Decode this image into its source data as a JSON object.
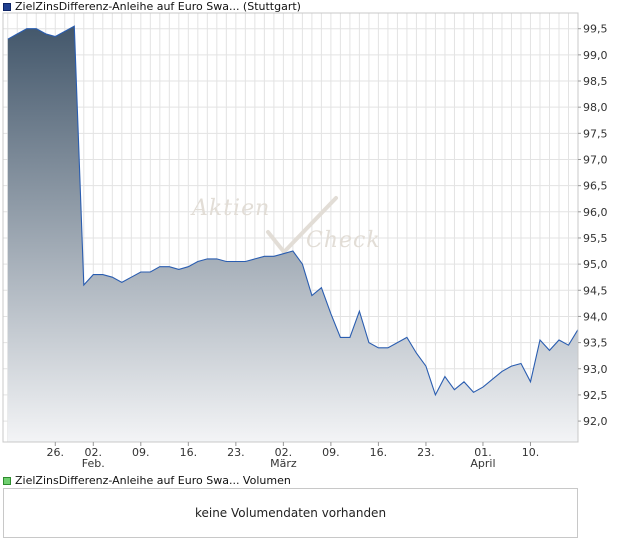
{
  "legend": {
    "price_label": "ZielZinsDifferenz-Anleihe auf Euro Swa... (Stuttgart)",
    "volume_label": "ZielZinsDifferenz-Anleihe auf Euro Swa... Volumen"
  },
  "volume_panel": {
    "message": "keine Volumendaten vorhanden"
  },
  "watermark": {
    "line1": "Aktien",
    "line2": "Check"
  },
  "chart_data": {
    "type": "area",
    "y_ticks": [
      "99,5",
      "99,0",
      "98,5",
      "98,0",
      "97,5",
      "97,0",
      "96,5",
      "96,0",
      "95,5",
      "95,0",
      "94,5",
      "94,0",
      "93,5",
      "93,0",
      "92,5",
      "92,0"
    ],
    "y_tick_values": [
      99.5,
      99.0,
      98.5,
      98.0,
      97.5,
      97.0,
      96.5,
      96.0,
      95.5,
      95.0,
      94.5,
      94.0,
      93.5,
      93.0,
      92.5,
      92.0
    ],
    "ylim": [
      91.6,
      99.8
    ],
    "x_ticks": [
      {
        "day": "26.",
        "month": "",
        "t": 16
      },
      {
        "day": "02.",
        "month": "Feb.",
        "t": 20
      },
      {
        "day": "09.",
        "month": "",
        "t": 25
      },
      {
        "day": "16.",
        "month": "",
        "t": 30
      },
      {
        "day": "23.",
        "month": "",
        "t": 35
      },
      {
        "day": "02.",
        "month": "März",
        "t": 40
      },
      {
        "day": "09.",
        "month": "",
        "t": 45
      },
      {
        "day": "16.",
        "month": "",
        "t": 50
      },
      {
        "day": "23.",
        "month": "",
        "t": 55
      },
      {
        "day": "01.",
        "month": "April",
        "t": 61
      },
      {
        "day": "10.",
        "month": "",
        "t": 66
      }
    ],
    "xlim": [
      10.5,
      71
    ],
    "grid": true,
    "series_color": "#2a5db0",
    "fill_top": "#43576b",
    "fill_bottom": "#f3f4f6",
    "x": [
      11,
      12,
      13,
      14,
      15,
      16,
      17,
      18,
      19,
      20,
      21,
      22,
      23,
      24,
      25,
      26,
      27,
      28,
      29,
      30,
      31,
      32,
      33,
      34,
      35,
      36,
      37,
      38,
      39,
      40,
      41,
      42,
      43,
      44,
      45,
      46,
      47,
      48,
      49,
      50,
      51,
      52,
      53,
      54,
      55,
      56,
      57,
      58,
      59,
      60,
      61,
      62,
      63,
      64,
      65,
      66,
      67,
      68,
      69,
      70,
      71
    ],
    "values": [
      99.3,
      99.4,
      99.5,
      99.5,
      99.4,
      99.35,
      99.45,
      99.55,
      94.6,
      94.8,
      94.8,
      94.75,
      94.65,
      94.75,
      94.85,
      94.85,
      94.95,
      94.95,
      94.9,
      94.95,
      95.05,
      95.1,
      95.1,
      95.05,
      95.05,
      95.05,
      95.1,
      95.15,
      95.15,
      95.2,
      95.25,
      95.0,
      94.4,
      94.55,
      94.05,
      93.6,
      93.6,
      94.1,
      93.5,
      93.4,
      93.4,
      93.5,
      93.6,
      93.3,
      93.05,
      92.5,
      92.85,
      92.6,
      92.75,
      92.55,
      92.65,
      92.8,
      92.95,
      93.05,
      93.1,
      92.75,
      93.55,
      93.35,
      93.55,
      93.45,
      93.75
    ]
  }
}
